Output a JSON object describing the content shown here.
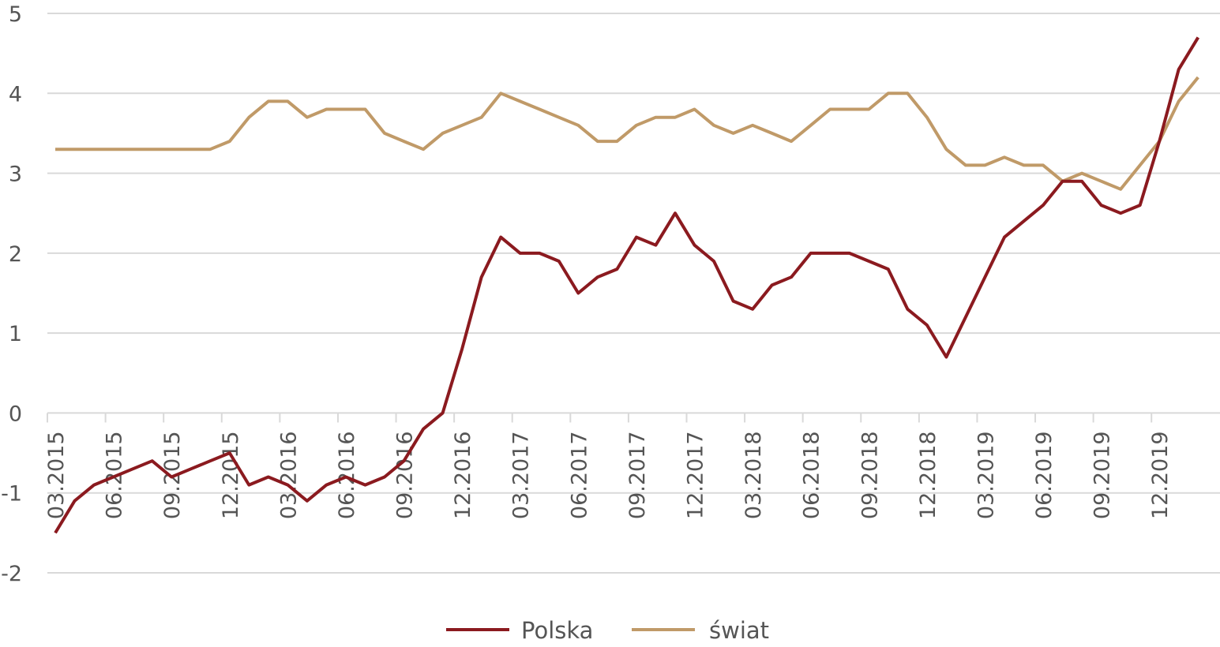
{
  "chart_data": {
    "type": "line",
    "title": "",
    "xlabel": "",
    "ylabel": "",
    "ylim": [
      -2,
      5
    ],
    "yticks": [
      -2,
      -1,
      0,
      1,
      2,
      3,
      4,
      5
    ],
    "grid": true,
    "legend_position": "bottom-center",
    "x_tick_labels": [
      "03.2015",
      "06.2015",
      "09.2015",
      "12.2015",
      "03.2016",
      "06.2016",
      "09.2016",
      "12.2016",
      "03.2017",
      "06.2017",
      "09.2017",
      "12.2017",
      "03.2018",
      "06.2018",
      "09.2018",
      "12.2018",
      "03.2019",
      "06.2019",
      "09.2019",
      "12.2019"
    ],
    "series": [
      {
        "name": "Polska",
        "color": "#8b1a1f",
        "values": [
          -1.5,
          -1.1,
          -0.9,
          -0.8,
          -0.7,
          -0.6,
          -0.8,
          -0.7,
          -0.6,
          -0.5,
          -0.9,
          -0.8,
          -0.9,
          -1.1,
          -0.9,
          -0.8,
          -0.9,
          -0.8,
          -0.6,
          -0.2,
          0.0,
          0.8,
          1.7,
          2.2,
          2.0,
          2.0,
          1.9,
          1.5,
          1.7,
          1.8,
          2.2,
          2.1,
          2.5,
          2.1,
          1.9,
          1.4,
          1.3,
          1.6,
          1.7,
          2.0,
          2.0,
          2.0,
          1.9,
          1.8,
          1.3,
          1.1,
          0.7,
          1.2,
          1.7,
          2.2,
          2.4,
          2.6,
          2.9,
          2.9,
          2.6,
          2.5,
          2.6,
          3.4,
          4.3,
          4.7
        ]
      },
      {
        "name": "świat",
        "color": "#c09a68",
        "values": [
          3.3,
          3.3,
          3.3,
          3.3,
          3.3,
          3.3,
          3.3,
          3.3,
          3.3,
          3.4,
          3.7,
          3.9,
          3.9,
          3.7,
          3.8,
          3.8,
          3.8,
          3.5,
          3.4,
          3.3,
          3.5,
          3.6,
          3.7,
          4.0,
          3.9,
          3.8,
          3.7,
          3.6,
          3.4,
          3.4,
          3.6,
          3.7,
          3.7,
          3.8,
          3.6,
          3.5,
          3.6,
          3.5,
          3.4,
          3.6,
          3.8,
          3.8,
          3.8,
          4.0,
          4.0,
          3.7,
          3.3,
          3.1,
          3.1,
          3.2,
          3.1,
          3.1,
          2.9,
          3.0,
          2.9,
          2.8,
          3.1,
          3.4,
          3.9,
          4.2
        ]
      }
    ]
  }
}
